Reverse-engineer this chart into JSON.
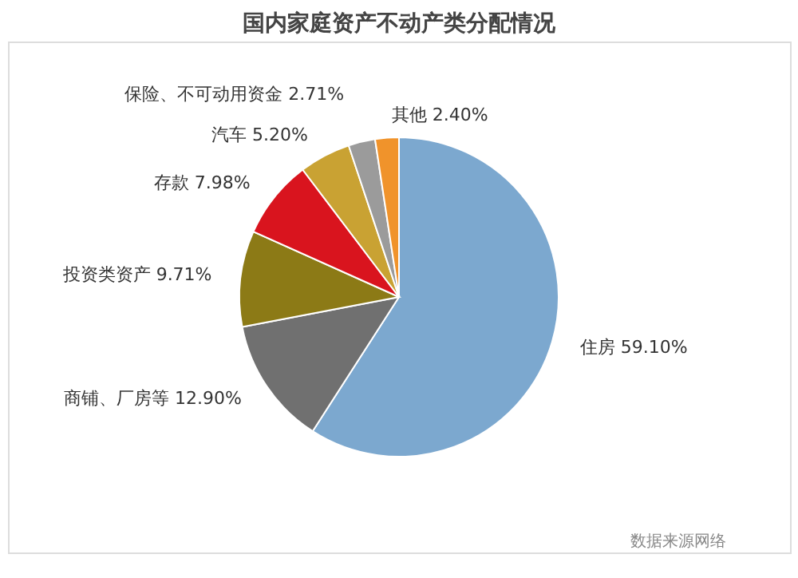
{
  "chart_data": {
    "type": "pie",
    "title": "国内家庭资产不动产类分配情况",
    "categories": [
      "住房",
      "商铺、厂房等",
      "投资类资产",
      "存款",
      "汽车",
      "保险、不可动用资金",
      "其他"
    ],
    "values": [
      59.1,
      12.9,
      9.71,
      7.98,
      5.2,
      2.71,
      2.4
    ],
    "colors": [
      "#7ca8cf",
      "#707070",
      "#8c7a16",
      "#d9141e",
      "#c9a233",
      "#9b9b9b",
      "#f0932b"
    ],
    "value_labels": [
      "59.10%",
      "12.90%",
      "9.71%",
      "7.98%",
      "5.20%",
      "2.71%",
      "2.40%"
    ],
    "legend": false,
    "annotations": [
      "数据来源网络"
    ]
  }
}
